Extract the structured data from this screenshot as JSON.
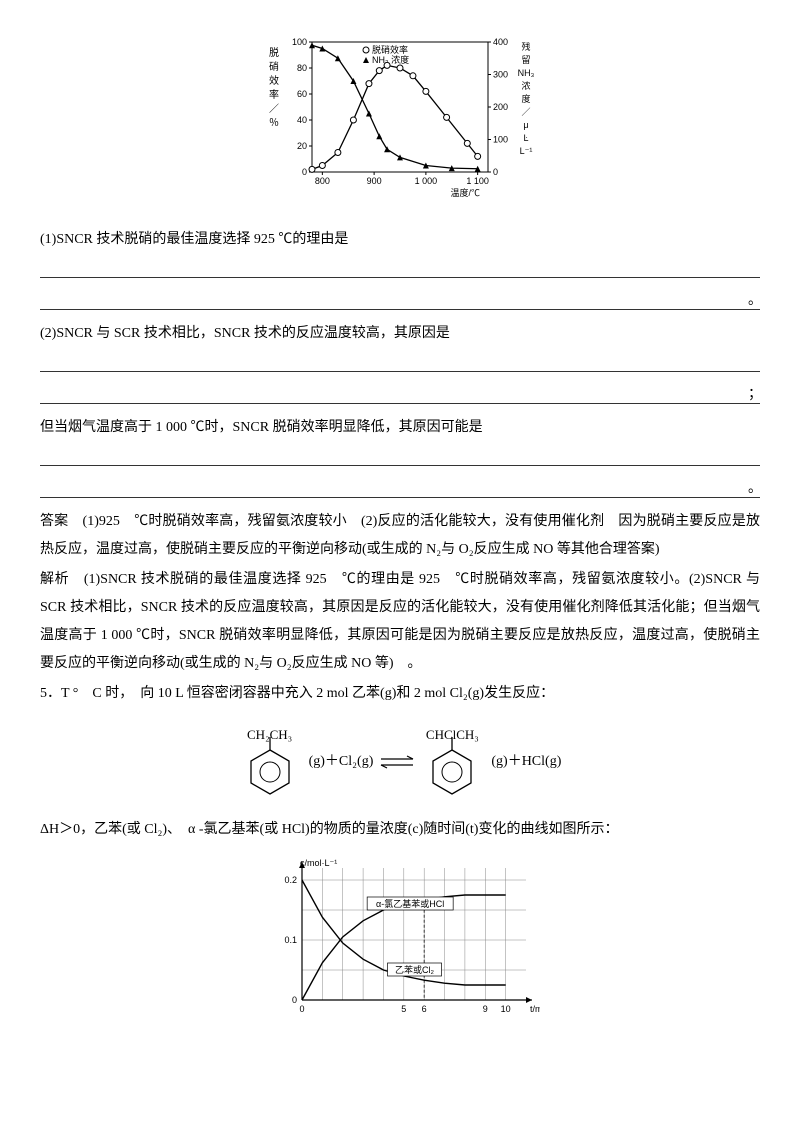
{
  "chart1": {
    "type": "dual-axis-line",
    "y1_label_lines": [
      "脱",
      "硝",
      "效",
      "率",
      "／",
      "％"
    ],
    "y2_label_lines": [
      "残",
      "留",
      "NH₃",
      "浓",
      "度",
      "／",
      "μ",
      "Ŀ",
      "L⁻¹"
    ],
    "x_label": "温度/℃",
    "legend": [
      "○脱硝效率",
      "▲NH₃ 浓度"
    ],
    "x_ticks": [
      "800",
      "900",
      "1 000",
      "1 100"
    ],
    "y1_ticks": [
      "0",
      "20",
      "40",
      "60",
      "80",
      "100"
    ],
    "y2_ticks": [
      "0",
      "100",
      "200",
      "300",
      "400"
    ],
    "x_range": [
      780,
      1120
    ],
    "y1_range": [
      0,
      100
    ],
    "y2_range": [
      0,
      400
    ],
    "efficiency_series": {
      "x": [
        780,
        800,
        830,
        860,
        890,
        910,
        925,
        950,
        975,
        1000,
        1040,
        1080,
        1100
      ],
      "y": [
        2,
        5,
        15,
        40,
        68,
        78,
        82,
        80,
        74,
        62,
        42,
        22,
        12
      ],
      "marker": "circle",
      "color": "#000000",
      "fill": "#ffffff"
    },
    "nh3_series": {
      "x": [
        780,
        800,
        830,
        860,
        890,
        910,
        925,
        950,
        1000,
        1050,
        1100
      ],
      "y": [
        390,
        380,
        350,
        280,
        180,
        110,
        70,
        45,
        20,
        12,
        10
      ],
      "marker": "triangle",
      "color": "#000000",
      "fill": "#000000"
    },
    "background_color": "#ffffff",
    "axis_color": "#000000",
    "font_size": 9
  },
  "q1": "(1)SNCR 技术脱硝的最佳温度选择 925 ℃的理由是",
  "q2a": "(2)SNCR 与 SCR 技术相比，SNCR 技术的反应温度较高，其原因是",
  "q2b": "但当烟气温度高于 1 000 ℃时，SNCR 脱硝效率明显降低，其原因可能是",
  "answer_label": "答案",
  "answer_text": "　(1)925　℃时脱硝效率高，残留氨浓度较小　(2)反应的活化能较大，没有使用催化剂　因为脱硝主要反应是放热反应，温度过高，使脱硝主要反应的平衡逆向移动(或生成的 N₂与 O₂反应生成 NO 等其他合理答案)",
  "explain_label": "解析",
  "explain_text": "　(1)SNCR 技术脱硝的最佳温度选择 925　℃的理由是 925　℃时脱硝效率高，残留氨浓度较小。(2)SNCR 与 SCR 技术相比，SNCR 技术的反应温度较高，其原因是反应的活化能较大，没有使用催化剂降低其活化能；但当烟气温度高于 1 000 ℃时，SNCR 脱硝效率明显降低，其原因可能是因为脱硝主要反应是放热反应，温度过高，使脱硝主要反应的平衡逆向移动(或生成的 N₂与 O₂反应生成 NO 等)　。",
  "q5_intro": "5．T °　C 时，　向 10 L 恒容密闭容器中充入 2 mol 乙苯(g)和 2 mol Cl₂(g)发生反应：",
  "reaction": {
    "reactant1_group": "CH₂CH₃",
    "mid1": "(g)＋Cl₂(g)",
    "eq": "⇌",
    "product1_group": "CHClCH₃",
    "mid2": "(g)＋HCl(g)"
  },
  "q5_tail": "ΔH＞0，乙苯(或 Cl₂)、　α -氯乙基苯(或 HCl)的物质的量浓度(c)随时间(t)变化的曲线如图所示：",
  "chart2": {
    "type": "line",
    "y_label": "c/mol·L⁻¹",
    "x_label": "t/min",
    "x_ticks": [
      "0",
      "5",
      "6",
      "9",
      "10"
    ],
    "y_ticks": [
      "0",
      "0.1",
      "0.2"
    ],
    "x_range": [
      0,
      11
    ],
    "y_range": [
      0,
      0.22
    ],
    "grid_color": "#888888",
    "grid_x": [
      0,
      1,
      2,
      3,
      4,
      5,
      6,
      7,
      8,
      9,
      10
    ],
    "grid_y": [
      0,
      0.05,
      0.1,
      0.15,
      0.2
    ],
    "series_a": {
      "label": "α-氯乙基苯或HCl",
      "label_box": true,
      "x": [
        0,
        1,
        2,
        3,
        4,
        5,
        6,
        7,
        8,
        9,
        10
      ],
      "y": [
        0,
        0.062,
        0.105,
        0.132,
        0.15,
        0.16,
        0.167,
        0.172,
        0.175,
        0.175,
        0.175
      ],
      "color": "#000000"
    },
    "series_b": {
      "label": "乙苯或Cl₂",
      "label_box": true,
      "x": [
        0,
        1,
        2,
        3,
        4,
        5,
        6,
        7,
        8,
        9,
        10
      ],
      "y": [
        0.2,
        0.138,
        0.095,
        0.068,
        0.05,
        0.04,
        0.033,
        0.028,
        0.025,
        0.025,
        0.025
      ],
      "color": "#000000"
    },
    "background_color": "#ffffff",
    "axis_color": "#000000",
    "font_size": 9
  }
}
